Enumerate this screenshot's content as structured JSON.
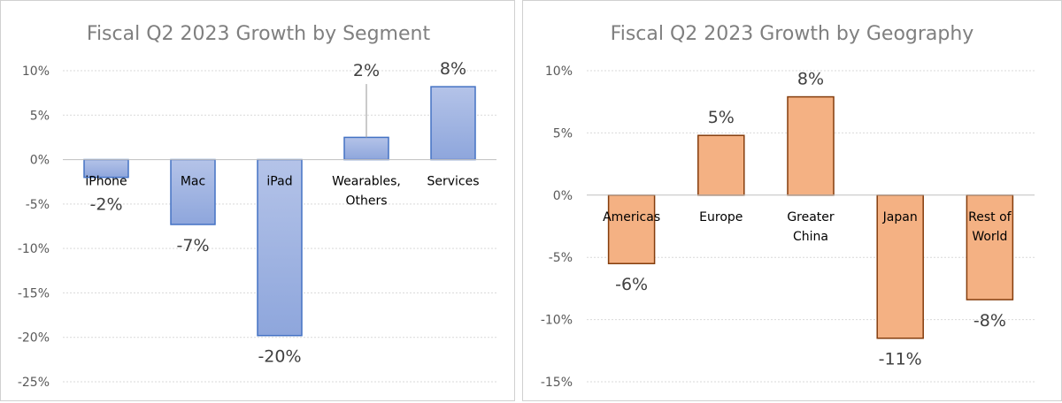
{
  "chart_data": [
    {
      "type": "bar",
      "title": "Fiscal Q2 2023 Growth by Segment",
      "categories": [
        "iPhone",
        "Mac",
        "iPad",
        "Wearables,|Others",
        "Services"
      ],
      "values": [
        -2.0,
        -7.3,
        -19.8,
        2.5,
        8.2
      ],
      "data_labels": [
        "-2%",
        "-7%",
        "-20%",
        "2%",
        "8%"
      ],
      "ylim": [
        -25,
        10
      ],
      "yticks": [
        -25,
        -20,
        -15,
        -10,
        -5,
        0,
        5,
        10
      ],
      "ytick_labels": [
        "-25%",
        "-20%",
        "-15%",
        "-10%",
        "-5%",
        "0%",
        "5%",
        "10%"
      ],
      "grid": true,
      "legend": "none",
      "fill_color_top": "#b4c3e8",
      "fill_color_bottom": "#8ea6dc",
      "edge_color": "#4472c4"
    },
    {
      "type": "bar",
      "title": "Fiscal Q2 2023 Growth by Geography",
      "categories": [
        "Americas",
        "Europe",
        "Greater|China",
        "Japan",
        "Rest of|World"
      ],
      "values": [
        -5.5,
        4.8,
        7.9,
        -11.5,
        -8.4
      ],
      "data_labels": [
        "-6%",
        "5%",
        "8%",
        "-11%",
        "-8%"
      ],
      "ylim": [
        -15,
        10
      ],
      "yticks": [
        -15,
        -10,
        -5,
        0,
        5,
        10
      ],
      "ytick_labels": [
        "-15%",
        "-10%",
        "-5%",
        "0%",
        "5%",
        "10%"
      ],
      "grid": true,
      "legend": "none",
      "fill_color": "#f4b183",
      "edge_color": "#843c0c"
    }
  ]
}
